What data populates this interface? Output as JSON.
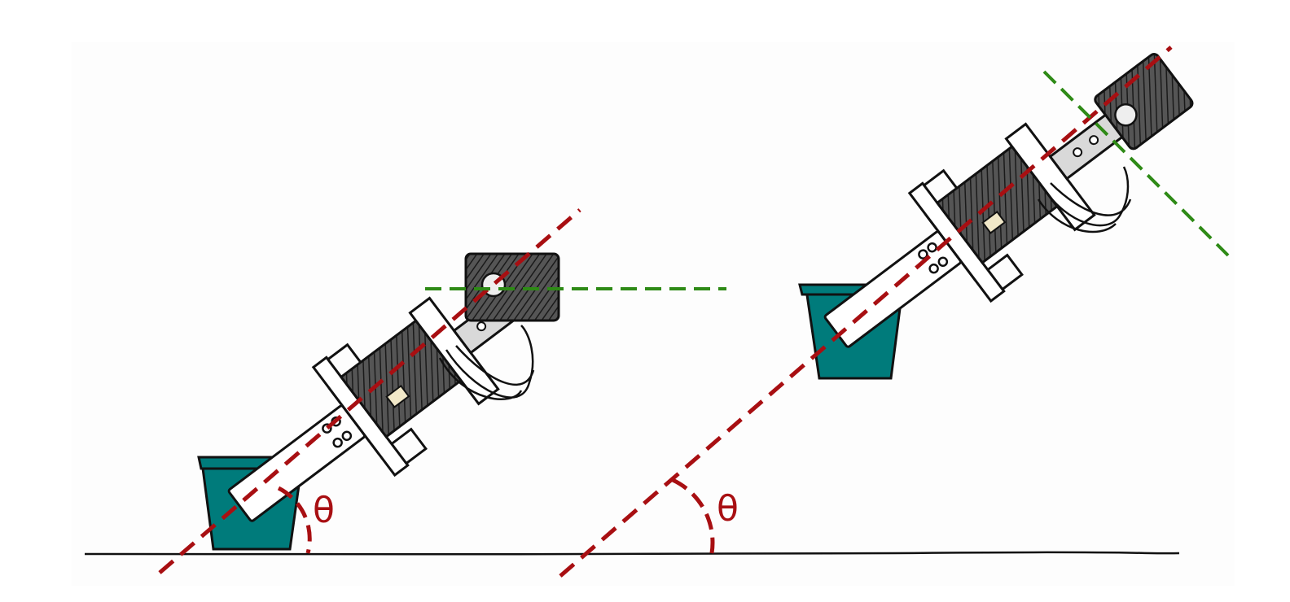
{
  "colors": {
    "background": "#ffffff",
    "panel": "#fdfdfd",
    "axis_line": "#a80f12",
    "reference_line": "#2e8a16",
    "bucket": "#007b7b",
    "ink": "#111111",
    "servo_body": "#4a4a4a",
    "bracket": "#ffffff",
    "arm_plate": "#d9d9d9"
  },
  "left_panel": {
    "angle_label": "θ",
    "reference": "horizontal-dashed-line"
  },
  "right_panel": {
    "angle_label": "θ",
    "reference": "perpendicular-dashed-line"
  }
}
